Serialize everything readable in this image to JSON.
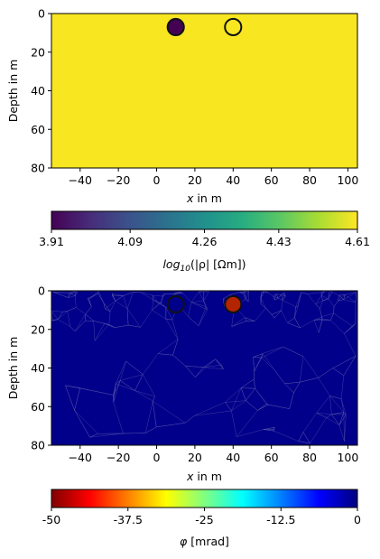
{
  "chart_data": [
    {
      "type": "heatmap",
      "panel": "top",
      "description_values": "resistivity section with two circular anomalies",
      "xlabel_var": "x",
      "xlabel_rest": " in m",
      "ylabel": "Depth in m",
      "xlim": [
        -55,
        105
      ],
      "ylim": [
        80,
        0
      ],
      "x_ticks": [
        -40,
        -20,
        0,
        20,
        40,
        60,
        80,
        100
      ],
      "y_ticks": [
        0,
        20,
        40,
        60,
        80
      ],
      "x_tick_labels": [
        "−40",
        "−20",
        "0",
        "20",
        "40",
        "60",
        "80",
        "100"
      ],
      "y_tick_labels": [
        "0",
        "20",
        "40",
        "60",
        "80"
      ],
      "background_value": 4.6,
      "anomalies": [
        {
          "x": 10,
          "depth": 7,
          "radius": 4.5,
          "value": 3.91
        },
        {
          "x": 40,
          "depth": 7,
          "radius": 4.5,
          "value": 4.6
        }
      ],
      "colormap": "viridis",
      "colorbar": {
        "min": 3.91,
        "max": 4.61,
        "ticks": [
          3.91,
          4.09,
          4.26,
          4.43,
          4.61
        ],
        "tick_labels": [
          "3.91",
          "4.09",
          "4.26",
          "4.43",
          "4.61"
        ],
        "label_pre": "log",
        "label_sub": "10",
        "label_post": "(|ρ| [Ωm])"
      }
    },
    {
      "type": "heatmap",
      "panel": "bottom",
      "xlabel_var": "x",
      "xlabel_rest": " in m",
      "ylabel": "Depth in m",
      "xlim": [
        -55,
        105
      ],
      "ylim": [
        80,
        0
      ],
      "x_ticks": [
        -40,
        -20,
        0,
        20,
        40,
        60,
        80,
        100
      ],
      "y_ticks": [
        0,
        20,
        40,
        60,
        80
      ],
      "x_tick_labels": [
        "−40",
        "−20",
        "0",
        "20",
        "40",
        "60",
        "80",
        "100"
      ],
      "y_tick_labels": [
        "0",
        "20",
        "40",
        "60",
        "80"
      ],
      "background_value": 0,
      "anomalies": [
        {
          "x": 10,
          "depth": 7,
          "radius": 4.5,
          "value": 0
        },
        {
          "x": 40,
          "depth": 7,
          "radius": 4.5,
          "value": -44
        }
      ],
      "colormap": "jet_r",
      "colorbar": {
        "min": -50,
        "max": 0,
        "ticks": [
          -50,
          -37.5,
          -25,
          -12.5,
          0
        ],
        "tick_labels": [
          "-50",
          "-37.5",
          "-25",
          "-12.5",
          "0"
        ],
        "label_var": "φ",
        "label_rest": " [mrad]"
      }
    }
  ],
  "colors": {
    "viridis_stops": [
      "#440154",
      "#472c7a",
      "#3b518b",
      "#2c718e",
      "#21908d",
      "#27ad81",
      "#5cc863",
      "#aadc32",
      "#fde725"
    ],
    "jet_r_stops": [
      "#800000",
      "#ff0000",
      "#ff8000",
      "#ffff00",
      "#80ff80",
      "#00ffff",
      "#0080ff",
      "#0000ff",
      "#000080"
    ],
    "top_background": "#f8e621",
    "bottom_background": "#00008b",
    "top_circle_left": "#440154",
    "bottom_circle_right": "#b32400",
    "mesh_line": "#5a5aa8"
  }
}
